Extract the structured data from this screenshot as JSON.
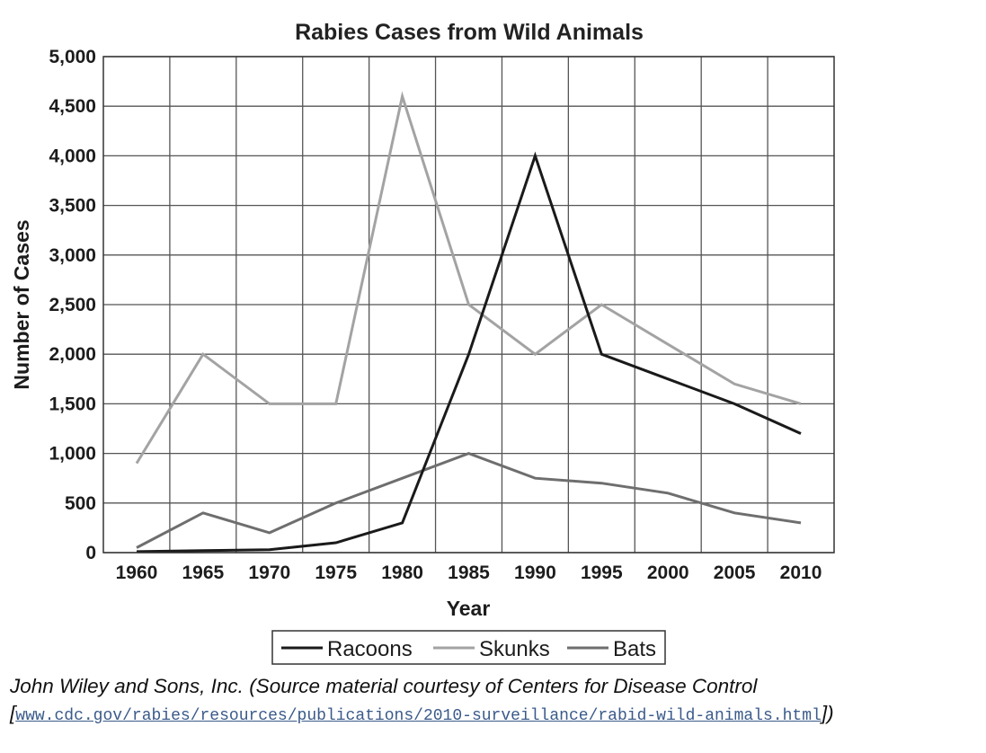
{
  "chart_data": {
    "type": "line",
    "title": "Rabies Cases from Wild Animals",
    "xlabel": "Year",
    "ylabel": "Number of Cases",
    "x": [
      1960,
      1965,
      1970,
      1975,
      1980,
      1985,
      1990,
      1995,
      2000,
      2005,
      2010
    ],
    "x_tick_labels": [
      "1960",
      "1965",
      "1970",
      "1975",
      "1980",
      "1985",
      "1990",
      "1995",
      "2000",
      "2005",
      "2010"
    ],
    "y_ticks": [
      0,
      500,
      1000,
      1500,
      2000,
      2500,
      3000,
      3500,
      4000,
      4500,
      5000
    ],
    "y_tick_labels": [
      "0",
      "500",
      "1,000",
      "1,500",
      "2,000",
      "2,500",
      "3,000",
      "3,500",
      "4,000",
      "4,500",
      "5,000"
    ],
    "ylim": [
      0,
      5000
    ],
    "xlim": [
      1957.5,
      2012.5
    ],
    "grid": true,
    "legend_position": "bottom",
    "series": [
      {
        "name": "Racoons",
        "color": "#1a1a1a",
        "values": [
          10,
          20,
          30,
          100,
          300,
          2000,
          4000,
          2000,
          1750,
          1500,
          1200
        ]
      },
      {
        "name": "Skunks",
        "color": "#a3a3a3",
        "values": [
          900,
          2000,
          1500,
          1500,
          4600,
          2500,
          2000,
          2500,
          2100,
          1700,
          1500
        ]
      },
      {
        "name": "Bats",
        "color": "#6e6e6e",
        "values": [
          50,
          400,
          200,
          500,
          750,
          1000,
          750,
          700,
          600,
          400,
          300
        ]
      }
    ]
  },
  "caption": {
    "text": "John Wiley and Sons, Inc. (Source material courtesy of Centers for Disease Control [",
    "link_text": "www.cdc.gov/rabies/resources/publications/2010-surveillance/rabid-wild-animals.html",
    "suffix": "])"
  }
}
